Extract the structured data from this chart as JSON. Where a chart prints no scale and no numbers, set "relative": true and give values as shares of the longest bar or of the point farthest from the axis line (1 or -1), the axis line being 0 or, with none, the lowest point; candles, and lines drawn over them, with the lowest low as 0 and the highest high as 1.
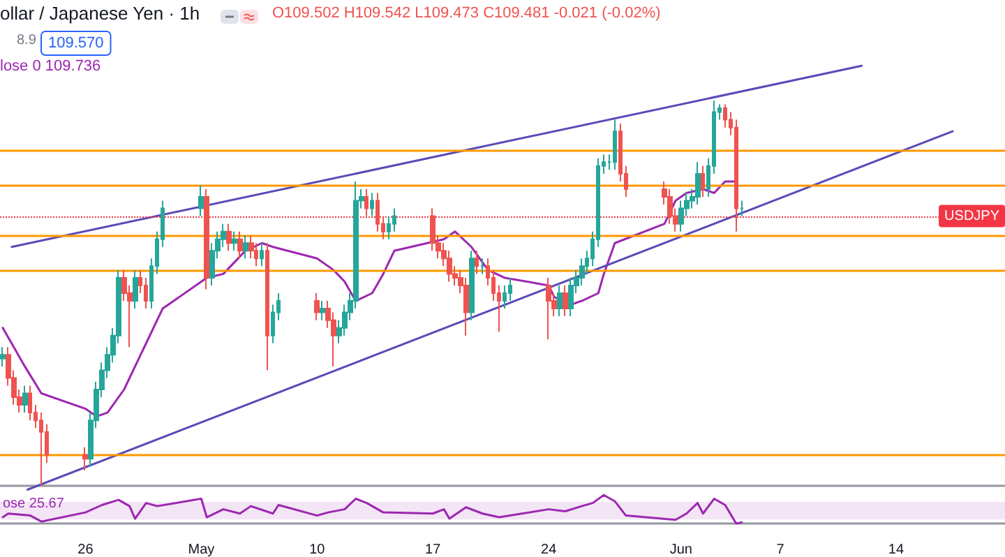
{
  "chart_data": [
    {
      "type": "candlestick",
      "title": "ollar / Japanese Yen · 1h",
      "annotations": [
        "O109.502 H109.542 L109.473 C109.481 -0.021 (-0.02%)",
        "8.9",
        "109.570",
        "lose 0 109.736"
      ],
      "relative": true,
      "tick_labels": false,
      "xlim": [
        "--04-20T20:00",
        "--06-20T14:00"
      ],
      "x": [
        "--04-21T00:00",
        "--04-21T08:00",
        "--04-21T16:00",
        "--04-22T00:00",
        "--04-22T08:00",
        "--04-22T16:00",
        "--04-23T00:00",
        "--04-23T08:00",
        "--04-23T16:00",
        "--04-26T00:00",
        "--04-26T08:00",
        "--04-26T16:00",
        "--04-27T00:00",
        "--04-27T08:00",
        "--04-27T16:00",
        "--04-28T00:00",
        "--04-28T08:00",
        "--04-28T16:00",
        "--04-29T00:00",
        "--04-29T08:00",
        "--04-29T16:00",
        "--04-30T00:00",
        "--04-30T08:00",
        "--04-30T16:00",
        "--05-03T00:00",
        "--05-03T08:00",
        "--05-03T16:00",
        "--05-04T00:00",
        "--05-04T08:00",
        "--05-04T16:00",
        "--05-05T00:00",
        "--05-05T08:00",
        "--05-05T16:00",
        "--05-06T00:00",
        "--05-06T08:00",
        "--05-06T16:00",
        "--05-07T00:00",
        "--05-07T08:00",
        "--05-07T16:00",
        "--05-10T00:00",
        "--05-10T08:00",
        "--05-10T16:00",
        "--05-11T00:00",
        "--05-11T08:00",
        "--05-11T16:00",
        "--05-12T00:00",
        "--05-12T08:00",
        "--05-12T16:00",
        "--05-13T00:00",
        "--05-13T08:00",
        "--05-13T16:00",
        "--05-14T00:00",
        "--05-14T08:00",
        "--05-14T16:00",
        "--05-17T00:00",
        "--05-17T08:00",
        "--05-17T16:00",
        "--05-18T00:00",
        "--05-18T08:00",
        "--05-18T16:00",
        "--05-19T00:00",
        "--05-19T08:00",
        "--05-19T16:00",
        "--05-20T00:00",
        "--05-20T08:00",
        "--05-20T16:00",
        "--05-21T00:00",
        "--05-21T08:00",
        "--05-21T16:00",
        "--05-24T00:00",
        "--05-24T08:00",
        "--05-24T16:00",
        "--05-25T00:00",
        "--05-25T08:00",
        "--05-25T16:00",
        "--05-26T00:00",
        "--05-26T08:00",
        "--05-26T16:00",
        "--05-27T00:00",
        "--05-27T08:00",
        "--05-27T16:00",
        "--05-28T00:00",
        "--05-28T08:00",
        "--05-28T16:00",
        "--05-31T00:00",
        "--05-31T08:00",
        "--05-31T16:00",
        "--06-01T00:00",
        "--06-01T08:00",
        "--06-01T16:00",
        "--06-02T00:00",
        "--06-02T08:00",
        "--06-02T16:00",
        "--06-03T00:00",
        "--06-03T08:00",
        "--06-03T16:00",
        "--06-04T00:00",
        "--06-04T08:00",
        "--06-04T16:00"
      ],
      "ohlc": [
        [
          0.33,
          0.36,
          0.31,
          0.34
        ],
        [
          0.34,
          0.36,
          0.26,
          0.28
        ],
        [
          0.28,
          0.3,
          0.21,
          0.23
        ],
        [
          0.23,
          0.25,
          0.19,
          0.21
        ],
        [
          0.21,
          0.26,
          0.19,
          0.24
        ],
        [
          0.24,
          0.26,
          0.17,
          0.19
        ],
        [
          0.19,
          0.21,
          0.15,
          0.17
        ],
        [
          0.17,
          0.19,
          0.0,
          0.14
        ],
        [
          0.14,
          0.16,
          0.06,
          0.08
        ],
        [
          0.08,
          0.1,
          0.04,
          0.07
        ],
        [
          0.07,
          0.19,
          0.05,
          0.17
        ],
        [
          0.17,
          0.27,
          0.15,
          0.25
        ],
        [
          0.25,
          0.32,
          0.23,
          0.3
        ],
        [
          0.3,
          0.36,
          0.28,
          0.34
        ],
        [
          0.34,
          0.41,
          0.32,
          0.39
        ],
        [
          0.39,
          0.56,
          0.37,
          0.54
        ],
        [
          0.54,
          0.56,
          0.48,
          0.5
        ],
        [
          0.5,
          0.52,
          0.36,
          0.48
        ],
        [
          0.48,
          0.56,
          0.46,
          0.54
        ],
        [
          0.54,
          0.56,
          0.5,
          0.52
        ],
        [
          0.52,
          0.54,
          0.46,
          0.48
        ],
        [
          0.48,
          0.59,
          0.46,
          0.57
        ],
        [
          0.57,
          0.66,
          0.55,
          0.64
        ],
        [
          0.64,
          0.74,
          0.62,
          0.72
        ],
        [
          0.72,
          0.78,
          0.7,
          0.75
        ],
        [
          0.75,
          0.77,
          0.51,
          0.54
        ],
        [
          0.54,
          0.63,
          0.52,
          0.61
        ],
        [
          0.61,
          0.66,
          0.59,
          0.64
        ],
        [
          0.64,
          0.68,
          0.62,
          0.66
        ],
        [
          0.66,
          0.68,
          0.61,
          0.63
        ],
        [
          0.63,
          0.66,
          0.61,
          0.64
        ],
        [
          0.64,
          0.66,
          0.59,
          0.61
        ],
        [
          0.61,
          0.65,
          0.59,
          0.63
        ],
        [
          0.63,
          0.65,
          0.59,
          0.61
        ],
        [
          0.61,
          0.63,
          0.57,
          0.59
        ],
        [
          0.59,
          0.63,
          0.57,
          0.61
        ],
        [
          0.61,
          0.63,
          0.3,
          0.39
        ],
        [
          0.39,
          0.47,
          0.37,
          0.45
        ],
        [
          0.45,
          0.5,
          0.43,
          0.48
        ],
        [
          0.48,
          0.5,
          0.43,
          0.45
        ],
        [
          0.45,
          0.48,
          0.43,
          0.46
        ],
        [
          0.46,
          0.48,
          0.41,
          0.43
        ],
        [
          0.43,
          0.45,
          0.31,
          0.39
        ],
        [
          0.39,
          0.43,
          0.37,
          0.41
        ],
        [
          0.41,
          0.47,
          0.39,
          0.45
        ],
        [
          0.45,
          0.5,
          0.43,
          0.48
        ],
        [
          0.48,
          0.79,
          0.46,
          0.74
        ],
        [
          0.74,
          0.77,
          0.72,
          0.75
        ],
        [
          0.75,
          0.77,
          0.7,
          0.72
        ],
        [
          0.72,
          0.76,
          0.7,
          0.74
        ],
        [
          0.74,
          0.76,
          0.66,
          0.68
        ],
        [
          0.68,
          0.7,
          0.64,
          0.66
        ],
        [
          0.66,
          0.7,
          0.64,
          0.68
        ],
        [
          0.68,
          0.72,
          0.66,
          0.7
        ],
        [
          0.7,
          0.72,
          0.61,
          0.63
        ],
        [
          0.63,
          0.65,
          0.59,
          0.61
        ],
        [
          0.61,
          0.63,
          0.57,
          0.59
        ],
        [
          0.59,
          0.61,
          0.53,
          0.55
        ],
        [
          0.55,
          0.57,
          0.52,
          0.54
        ],
        [
          0.54,
          0.56,
          0.5,
          0.52
        ],
        [
          0.52,
          0.54,
          0.39,
          0.45
        ],
        [
          0.45,
          0.61,
          0.43,
          0.59
        ],
        [
          0.59,
          0.61,
          0.55,
          0.57
        ],
        [
          0.57,
          0.59,
          0.55,
          0.57
        ],
        [
          0.57,
          0.59,
          0.52,
          0.54
        ],
        [
          0.54,
          0.56,
          0.48,
          0.5
        ],
        [
          0.5,
          0.52,
          0.4,
          0.48
        ],
        [
          0.48,
          0.52,
          0.46,
          0.5
        ],
        [
          0.5,
          0.54,
          0.48,
          0.52
        ],
        [
          0.52,
          0.54,
          0.38,
          0.48
        ],
        [
          0.48,
          0.5,
          0.44,
          0.46
        ],
        [
          0.46,
          0.52,
          0.44,
          0.5
        ],
        [
          0.5,
          0.52,
          0.44,
          0.46
        ],
        [
          0.46,
          0.54,
          0.44,
          0.52
        ],
        [
          0.52,
          0.56,
          0.5,
          0.54
        ],
        [
          0.54,
          0.59,
          0.52,
          0.57
        ],
        [
          0.57,
          0.61,
          0.55,
          0.59
        ],
        [
          0.59,
          0.66,
          0.57,
          0.64
        ],
        [
          0.64,
          0.85,
          0.62,
          0.83
        ],
        [
          0.83,
          0.86,
          0.81,
          0.84
        ],
        [
          0.84,
          0.86,
          0.82,
          0.84
        ],
        [
          0.84,
          0.95,
          0.82,
          0.92
        ],
        [
          0.92,
          0.94,
          0.79,
          0.81
        ],
        [
          0.81,
          0.83,
          0.75,
          0.77
        ],
        [
          0.77,
          0.79,
          0.73,
          0.75
        ],
        [
          0.75,
          0.77,
          0.68,
          0.7
        ],
        [
          0.7,
          0.72,
          0.66,
          0.68
        ],
        [
          0.68,
          0.74,
          0.66,
          0.72
        ],
        [
          0.72,
          0.76,
          0.7,
          0.74
        ],
        [
          0.74,
          0.77,
          0.72,
          0.75
        ],
        [
          0.75,
          0.84,
          0.73,
          0.81
        ],
        [
          0.81,
          0.83,
          0.75,
          0.77
        ],
        [
          0.77,
          0.85,
          0.75,
          0.83
        ],
        [
          0.83,
          1.0,
          0.81,
          0.97
        ],
        [
          0.97,
          0.99,
          0.95,
          0.98
        ],
        [
          0.98,
          0.99,
          0.93,
          0.95
        ],
        [
          0.95,
          0.97,
          0.91,
          0.93
        ],
        [
          0.93,
          0.95,
          0.66,
          0.72
        ],
        [
          0.72,
          0.74,
          0.7,
          0.72
        ]
      ],
      "series": [
        {
          "type": "line",
          "color": "#9c27b0",
          "x": [
            "--04-21T00:00",
            "--04-21T16:00",
            "--04-22T08:00",
            "--04-23T08:00",
            "--04-26T00:00",
            "--04-26T16:00",
            "--04-27T08:00",
            "--04-28T08:00",
            "--04-29T00:00",
            "--04-29T16:00",
            "--04-30T16:00",
            "--05-03T08:00",
            "--05-04T08:00",
            "--05-05T00:00",
            "--05-05T16:00",
            "--05-06T16:00",
            "--05-07T08:00",
            "--05-10T00:00",
            "--05-11T00:00",
            "--05-11T16:00",
            "--05-12T08:00",
            "--05-13T08:00",
            "--05-14T00:00",
            "--05-14T16:00",
            "--05-17T16:00",
            "--05-18T08:00",
            "--05-19T08:00",
            "--05-19T16:00",
            "--05-20T08:00",
            "--05-21T08:00",
            "--05-24T00:00",
            "--05-24T08:00",
            "--05-25T08:00",
            "--05-26T00:00",
            "--05-27T00:00",
            "--05-27T08:00",
            "--05-28T00:00",
            "--05-31T00:00",
            "--05-31T16:00",
            "--06-01T08:00",
            "--06-02T08:00",
            "--06-03T00:00",
            "--06-03T16:00",
            "--06-04T08:00"
          ],
          "values": [
            0.41,
            0.36,
            0.31,
            0.24,
            0.2,
            0.18,
            0.19,
            0.25,
            0.31,
            0.37,
            0.46,
            0.54,
            0.55,
            0.58,
            0.61,
            0.63,
            0.62,
            0.59,
            0.56,
            0.53,
            0.48,
            0.5,
            0.55,
            0.61,
            0.64,
            0.66,
            0.62,
            0.6,
            0.56,
            0.54,
            0.52,
            0.49,
            0.47,
            0.48,
            0.5,
            0.55,
            0.63,
            0.68,
            0.74,
            0.76,
            0.77,
            0.76,
            0.79,
            0.79
          ]
        },
        {
          "type": "line",
          "color": "#5b4ab8",
          "x": [
            "--04-21T13:00",
            "--06-11T22:00"
          ],
          "values": [
            0.62,
            1.09
          ]
        },
        {
          "type": "line",
          "color": "#5b4ab8",
          "x": [
            "--04-22T12:00",
            "--06-17T10:00"
          ],
          "values": [
            -0.01,
            0.92
          ]
        }
      ],
      "ref_lines": [
        {
          "axis": "y",
          "value": 0.87,
          "color": "#ff9800"
        },
        {
          "axis": "y",
          "value": 0.78,
          "color": "#ff9800"
        },
        {
          "axis": "y",
          "value": 0.65,
          "color": "#ff9800"
        },
        {
          "axis": "y",
          "value": 0.56,
          "color": "#ff9800"
        },
        {
          "axis": "y",
          "value": 0.08,
          "color": "#ff9800"
        },
        {
          "axis": "y",
          "value": 0.7,
          "label": "USDJPY",
          "color": "#f23645",
          "line_style": "dotted"
        }
      ]
    },
    {
      "type": "line",
      "relative": true,
      "tick_labels": "x",
      "annotations": [
        "ose 25.67"
      ],
      "xlim": [
        "--04-20T20:00",
        "--06-20T14:00"
      ],
      "xticks": [
        {
          "value": "--04-26",
          "label": "26"
        },
        {
          "value": "--05-03",
          "label": "May"
        },
        {
          "value": "--05-10",
          "label": "10"
        },
        {
          "value": "--05-17",
          "label": "17"
        },
        {
          "value": "--05-24",
          "label": "24"
        },
        {
          "value": "--06-01",
          "label": "Jun"
        },
        {
          "value": "--06-07",
          "label": "7"
        },
        {
          "value": "--06-14",
          "label": "14"
        }
      ],
      "x": [
        "--04-21T00:00",
        "--04-21T08:00",
        "--04-22T16:00",
        "--04-23T08:00",
        "--04-26T00:00",
        "--04-27T00:00",
        "--04-28T00:00",
        "--04-28T16:00",
        "--04-29T00:00",
        "--04-29T16:00",
        "--04-30T08:00",
        "--05-03T00:00",
        "--05-03T08:00",
        "--05-04T08:00",
        "--05-05T08:00",
        "--05-06T00:00",
        "--05-07T08:00",
        "--05-07T16:00",
        "--05-10T00:00",
        "--05-10T16:00",
        "--05-11T16:00",
        "--05-12T08:00",
        "--05-13T00:00",
        "--05-14T00:00",
        "--05-17T00:00",
        "--05-17T16:00",
        "--05-18T00:00",
        "--05-19T00:00",
        "--05-20T00:00",
        "--05-21T00:00",
        "--05-24T00:00",
        "--05-25T00:00",
        "--05-26T00:00",
        "--05-26T16:00",
        "--05-27T08:00",
        "--05-28T00:00",
        "--05-28T16:00",
        "--05-31T16:00",
        "--06-01T08:00",
        "--06-02T00:00",
        "--06-02T08:00",
        "--06-03T00:00",
        "--06-03T16:00",
        "--06-04T08:00",
        "--06-04T16:00"
      ],
      "series": [
        {
          "color": "#9c27b0",
          "values": [
            0.22,
            0.35,
            0.28,
            0.07,
            0.39,
            0.65,
            0.83,
            0.61,
            0.17,
            0.72,
            0.61,
            0.87,
            0.22,
            0.5,
            0.35,
            0.61,
            0.35,
            0.65,
            0.28,
            0.39,
            0.5,
            0.87,
            0.72,
            0.39,
            0.35,
            0.5,
            0.17,
            0.57,
            0.35,
            0.22,
            0.5,
            0.43,
            0.61,
            0.72,
            1.0,
            0.78,
            0.28,
            0.13,
            0.35,
            0.72,
            0.35,
            0.87,
            0.65,
            0.0,
            0.04
          ]
        }
      ],
      "bands": [
        {
          "axis": "y",
          "from": 0.14,
          "to": 0.76,
          "color": "#f3e5f5"
        }
      ]
    }
  ]
}
